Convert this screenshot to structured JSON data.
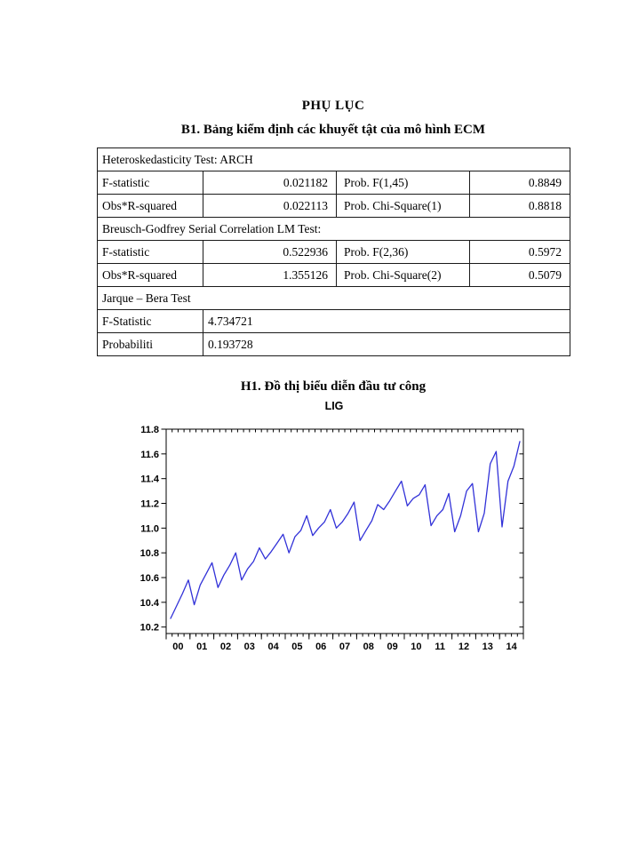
{
  "page": {
    "title": "PHỤ LỤC",
    "table_heading": "B1. Bảng kiểm định các khuyết tật của mô hình ECM",
    "chart_heading": "H1. Đồ thị biểu diễn đầu tư công"
  },
  "table": {
    "sections": [
      {
        "header": "Heteroskedasticity Test: ARCH",
        "rows": [
          [
            "F-statistic",
            "0.021182",
            "Prob. F(1,45)",
            "0.8849"
          ],
          [
            "Obs*R-squared",
            "0.022113",
            "Prob. Chi-Square(1)",
            "0.8818"
          ]
        ]
      },
      {
        "header": "Breusch-Godfrey Serial Correlation LM Test:",
        "rows": [
          [
            "F-statistic",
            "0.522936",
            "Prob. F(2,36)",
            "0.5972"
          ],
          [
            "Obs*R-squared",
            "1.355126",
            "Prob. Chi-Square(2)",
            "0.5079"
          ]
        ]
      },
      {
        "header": "Jarque – Bera Test",
        "rows": [
          [
            "F-Statistic",
            "4.734721"
          ],
          [
            "Probabiliti",
            "0.193728"
          ]
        ]
      }
    ]
  },
  "chart_data": {
    "type": "line",
    "title": "LIG",
    "series_name": "LIG",
    "points_per_year": 4,
    "x_year_labels": [
      "00",
      "01",
      "02",
      "03",
      "04",
      "05",
      "06",
      "07",
      "08",
      "09",
      "10",
      "11",
      "12",
      "13",
      "14"
    ],
    "values": [
      10.27,
      10.37,
      10.47,
      10.58,
      10.38,
      10.54,
      10.63,
      10.72,
      10.52,
      10.62,
      10.7,
      10.8,
      10.58,
      10.67,
      10.73,
      10.84,
      10.75,
      10.81,
      10.88,
      10.95,
      10.8,
      10.93,
      10.98,
      11.1,
      10.94,
      11.0,
      11.05,
      11.15,
      11.0,
      11.05,
      11.12,
      11.21,
      10.9,
      10.98,
      11.06,
      11.19,
      11.15,
      11.22,
      11.3,
      11.38,
      11.18,
      11.24,
      11.27,
      11.35,
      11.02,
      11.1,
      11.15,
      11.28,
      10.97,
      11.1,
      11.3,
      11.36,
      10.97,
      11.12,
      11.52,
      11.62,
      11.01,
      11.38,
      11.5,
      11.7
    ],
    "ylim": [
      10.2,
      11.8
    ],
    "yticks": [
      10.2,
      10.4,
      10.6,
      10.8,
      11.0,
      11.2,
      11.4,
      11.6,
      11.8
    ],
    "line_color": "#3232d8",
    "grid": false,
    "legend": "none"
  }
}
